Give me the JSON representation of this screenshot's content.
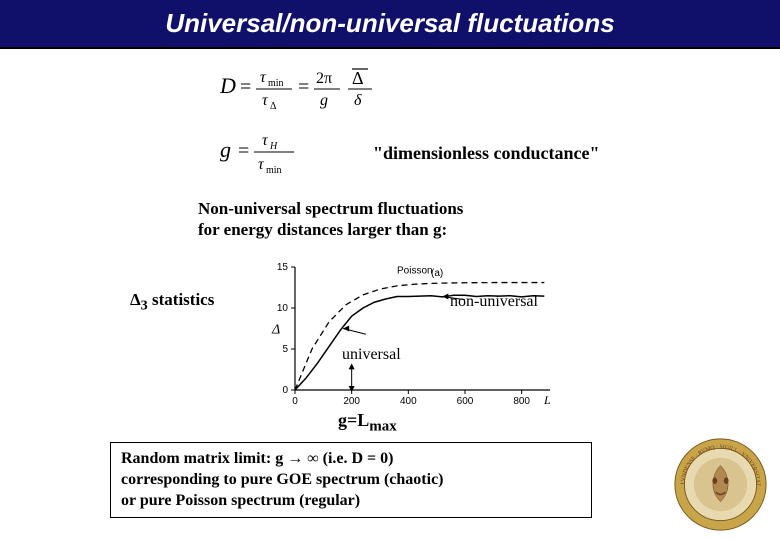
{
  "title": "Universal/non-universal fluctuations",
  "dimensionless_label": "\"dimensionless conductance\"",
  "nonuniversal_heading_line1": "Non-universal spectrum fluctuations",
  "nonuniversal_heading_line2": "for energy distances larger than g:",
  "delta3_label_html": "Δ<sub>3</sub> statistics",
  "chart": {
    "type": "line",
    "xlim": [
      0,
      900
    ],
    "ylim": [
      0,
      15
    ],
    "xticks": [
      0,
      200,
      400,
      600,
      800
    ],
    "yticks": [
      0,
      5,
      10,
      15
    ],
    "poisson_label": "Poisson",
    "legend_marker": "(a)",
    "axis_L_label": "L",
    "yaxis_symbol": "Δ",
    "series": {
      "solid": {
        "color": "#000000",
        "points": [
          [
            0,
            0
          ],
          [
            40,
            1.5
          ],
          [
            80,
            3.3
          ],
          [
            120,
            5.3
          ],
          [
            160,
            7.3
          ],
          [
            200,
            9.0
          ],
          [
            240,
            10.0
          ],
          [
            280,
            10.7
          ],
          [
            320,
            11.1
          ],
          [
            360,
            11.4
          ],
          [
            400,
            11.4
          ],
          [
            440,
            11.45
          ],
          [
            480,
            11.5
          ],
          [
            520,
            11.35
          ],
          [
            560,
            11.55
          ],
          [
            600,
            11.55
          ],
          [
            640,
            11.4
          ],
          [
            680,
            11.5
          ],
          [
            720,
            11.45
          ],
          [
            760,
            11.5
          ],
          [
            800,
            11.35
          ],
          [
            840,
            11.5
          ],
          [
            880,
            11.45
          ]
        ]
      },
      "dashed": {
        "color": "#000000",
        "dash": "6,4",
        "points": [
          [
            0,
            0
          ],
          [
            60,
            5
          ],
          [
            120,
            8.3
          ],
          [
            180,
            10.4
          ],
          [
            240,
            11.6
          ],
          [
            300,
            12.3
          ],
          [
            360,
            12.7
          ],
          [
            420,
            12.9
          ],
          [
            480,
            13.0
          ],
          [
            540,
            13.05
          ],
          [
            600,
            13.08
          ],
          [
            700,
            13.1
          ],
          [
            800,
            13.1
          ],
          [
            880,
            13.1
          ]
        ]
      }
    },
    "g_marker_x": 200,
    "annotations": {
      "non_universal": "non-universal",
      "universal": "universal"
    },
    "background_color": "#ffffff",
    "axis_color": "#000000",
    "tick_fontsize": 10
  },
  "g_Lmax_html": "g=L<sub>max</sub>",
  "bottom_box_html": "Random matrix limit: g → ∞  (i.e. D = 0)<br>corresponding to pure GOE spectrum (chaotic)<br>or pure Poisson spectrum (regular)",
  "seal": {
    "outer_color": "#c9a54a",
    "motto_color": "#6a3e1b",
    "face_color": "#b08850"
  }
}
